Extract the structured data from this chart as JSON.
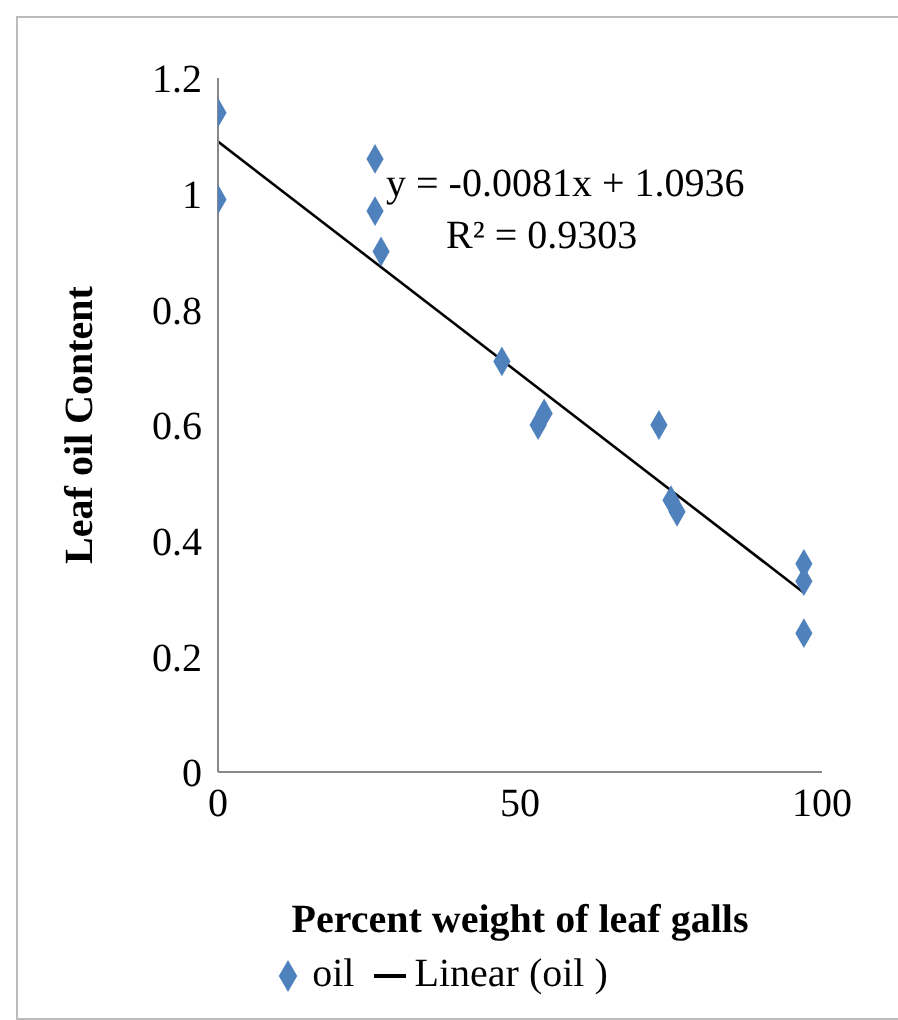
{
  "chart_data": {
    "type": "scatter",
    "xlabel": "Percent weight of leaf galls",
    "ylabel": "Leaf oil Content",
    "xlim": [
      0,
      100
    ],
    "xticks": [
      0,
      50,
      100
    ],
    "ylim": [
      0,
      1.2
    ],
    "yticks": [
      0,
      0.2,
      0.4,
      0.6,
      0.8,
      1,
      1.2
    ],
    "legend": "bottom",
    "marker": "diamond",
    "annotations": [
      "y = -0.0081x + 1.0936",
      "R² = 0.9303"
    ],
    "series": [
      {
        "name": "oil",
        "color": "#4f81bd",
        "x": [
          0,
          0,
          26,
          26,
          27,
          47,
          54,
          53,
          73,
          75,
          76,
          97,
          97,
          97
        ],
        "values": [
          1.14,
          0.99,
          1.06,
          0.97,
          0.9,
          0.71,
          0.62,
          0.6,
          0.6,
          0.47,
          0.45,
          0.36,
          0.33,
          0.24
        ]
      },
      {
        "name": "Linear (oil )",
        "type": "line",
        "color": "#000000",
        "line_style": "solid",
        "marker": "none",
        "x": [
          0,
          97
        ],
        "values": [
          1.09,
          0.31
        ]
      }
    ]
  }
}
